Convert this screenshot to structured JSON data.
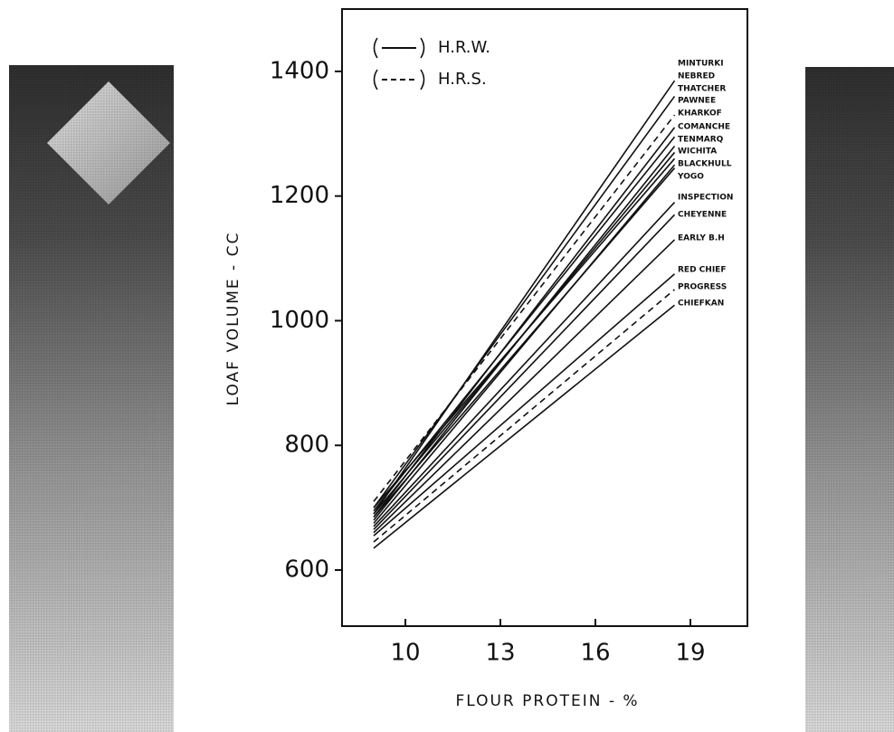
{
  "chart_data": {
    "type": "line",
    "y_label": "LOAF VOLUME - CC",
    "x_label": "FLOUR PROTEIN - %",
    "xlim": [
      8,
      20.8
    ],
    "xticks": [
      10,
      13,
      16,
      19
    ],
    "ylim": [
      510,
      1500
    ],
    "yticks": [
      600,
      800,
      1000,
      1200,
      1400
    ],
    "legend": [
      {
        "label": "H.R.W.",
        "style": "solid"
      },
      {
        "label": "H.R.S.",
        "style": "dashed"
      }
    ],
    "series": [
      {
        "name": "MINTURKI",
        "color": "#111111",
        "style": "solid",
        "x": [
          9,
          18.5
        ],
        "values": [
          690,
          1385
        ]
      },
      {
        "name": "NEBRED",
        "color": "#111111",
        "style": "solid",
        "x": [
          9,
          18.5
        ],
        "values": [
          700,
          1360
        ]
      },
      {
        "name": "THATCHER",
        "color": "#111111",
        "style": "dashed",
        "x": [
          9,
          18.5
        ],
        "values": [
          710,
          1330
        ]
      },
      {
        "name": "PAWNEE",
        "color": "#111111",
        "style": "solid",
        "x": [
          9,
          18.5
        ],
        "values": [
          685,
          1310
        ]
      },
      {
        "name": "KHARKOF",
        "color": "#111111",
        "style": "solid",
        "x": [
          9,
          18.5
        ],
        "values": [
          695,
          1295
        ]
      },
      {
        "name": "COMANCHE",
        "color": "#111111",
        "style": "solid",
        "x": [
          9,
          18.5
        ],
        "values": [
          680,
          1280
        ]
      },
      {
        "name": "TENMARQ",
        "color": "#111111",
        "style": "solid",
        "x": [
          9,
          18.5
        ],
        "values": [
          690,
          1270
        ]
      },
      {
        "name": "WICHITA",
        "color": "#111111",
        "style": "solid",
        "x": [
          9,
          18.5
        ],
        "values": [
          700,
          1260
        ]
      },
      {
        "name": "BLACKHULL",
        "color": "#111111",
        "style": "solid",
        "x": [
          9,
          18.5
        ],
        "values": [
          675,
          1250
        ]
      },
      {
        "name": "YOGO",
        "color": "#111111",
        "style": "solid",
        "x": [
          9,
          18.5
        ],
        "values": [
          685,
          1245
        ]
      },
      {
        "name": "INSPECTION",
        "color": "#111111",
        "style": "solid",
        "x": [
          9,
          18.5
        ],
        "values": [
          670,
          1190
        ]
      },
      {
        "name": "CHEYENNE",
        "color": "#111111",
        "style": "solid",
        "x": [
          9,
          18.5
        ],
        "values": [
          665,
          1170
        ]
      },
      {
        "name": "EARLY B.H",
        "color": "#111111",
        "style": "solid",
        "x": [
          9,
          18.5
        ],
        "values": [
          660,
          1130
        ]
      },
      {
        "name": "RED CHIEF",
        "color": "#111111",
        "style": "solid",
        "x": [
          9,
          18.5
        ],
        "values": [
          655,
          1075
        ]
      },
      {
        "name": "PROGRESS",
        "color": "#111111",
        "style": "dashed",
        "x": [
          9,
          18.5
        ],
        "values": [
          645,
          1050
        ]
      },
      {
        "name": "CHIEFKAN",
        "color": "#111111",
        "style": "solid",
        "x": [
          9,
          18.5
        ],
        "values": [
          635,
          1025
        ]
      }
    ]
  }
}
